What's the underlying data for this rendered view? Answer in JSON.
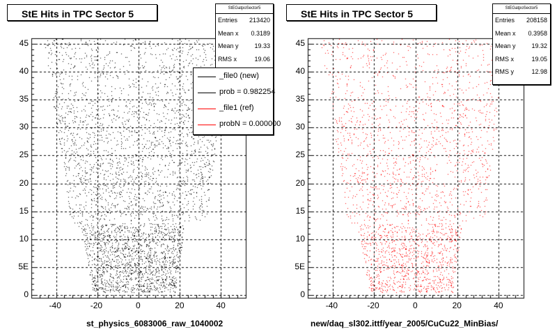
{
  "panels": [
    {
      "title": "StE Hits in TPC Sector 5",
      "xaxis_title": "st_physics_6083006_raw_1040002",
      "stats": {
        "name": "StEGatpoSector5",
        "rows": [
          {
            "label": "Entries",
            "value": "213420"
          },
          {
            "label": "Mean x",
            "value": "0.3189"
          },
          {
            "label": "Mean y",
            "value": "19.33"
          },
          {
            "label": "RMS x",
            "value": "19.06"
          }
        ]
      },
      "legend": [
        {
          "label": "_file0 (new)",
          "color": "#000000"
        },
        {
          "label": "prob = 0.982254",
          "color": "#000000"
        },
        {
          "label": "_file1 (ref)",
          "color": "#ff0000"
        },
        {
          "label": "probN = 0.000000",
          "color": "#ff0000"
        }
      ],
      "marker_color": "#000000"
    },
    {
      "title": "StE Hits in TPC Sector 5",
      "xaxis_title": "new/daq_sl302.ittf/year_2005/CuCu22_MinBias/",
      "stats": {
        "name": "StEGatpoSector5",
        "rows": [
          {
            "label": "Entries",
            "value": "208158"
          },
          {
            "label": "Mean x",
            "value": "0.3958"
          },
          {
            "label": "Mean y",
            "value": "19.32"
          },
          {
            "label": "RMS x",
            "value": "19.05"
          },
          {
            "label": "RMS y",
            "value": "12.98"
          }
        ]
      },
      "marker_color": "#ff0000"
    }
  ],
  "chart_data": [
    {
      "type": "scatter",
      "title": "StE Hits in TPC Sector 5",
      "xlabel": "st_physics_6083006_raw_1040002",
      "ylabel": "",
      "xlim": [
        -52,
        52
      ],
      "ylim": [
        -0.5,
        46
      ],
      "x_ticks": [
        -40,
        -20,
        0,
        20,
        40
      ],
      "y_ticks": [
        0,
        5,
        10,
        15,
        20,
        25,
        30,
        35,
        40,
        45
      ],
      "y_tick_labels": [
        "0",
        "5E",
        "10",
        "15",
        "20",
        "25",
        "30",
        "35",
        "40",
        "45"
      ],
      "grid": true,
      "series": [
        {
          "name": "_file0 (new)",
          "color": "#000000"
        }
      ],
      "stats": {
        "entries": 213420,
        "mean_x": 0.3189,
        "mean_y": 19.33,
        "rms_x": 19.06
      },
      "legend_entries": [
        "_file0 (new)",
        "prob = 0.982254",
        "_file1 (ref)",
        "probN = 0.000000"
      ],
      "row_extent": [
        {
          "y": 0.5,
          "xmin": -22,
          "xmax": 18
        },
        {
          "y": 12,
          "xmin": -28,
          "xmax": 22
        },
        {
          "y": 13.5,
          "xmin": -33,
          "xmax": 33
        },
        {
          "y": 46,
          "xmin": -46,
          "xmax": 44
        }
      ],
      "gaps": [
        {
          "y": [
            12.9,
            13.3
          ],
          "x": [
            -27,
            32
          ]
        }
      ]
    },
    {
      "type": "scatter",
      "title": "StE Hits in TPC Sector 5",
      "xlabel": "new/daq_sl302.ittf/year_2005/CuCu22_MinBias/",
      "ylabel": "",
      "xlim": [
        -52,
        52
      ],
      "ylim": [
        -0.5,
        46
      ],
      "x_ticks": [
        -40,
        -20,
        0,
        20,
        40
      ],
      "y_ticks": [
        0,
        5,
        10,
        15,
        20,
        25,
        30,
        35,
        40,
        45
      ],
      "y_tick_labels": [
        "0",
        "5E",
        "10",
        "15",
        "20",
        "25",
        "30",
        "35",
        "40",
        "45"
      ],
      "grid": true,
      "series": [
        {
          "name": "_file1 (ref)",
          "color": "#ff0000"
        }
      ],
      "stats": {
        "entries": 208158,
        "mean_x": 0.3958,
        "mean_y": 19.32,
        "rms_x": 19.05,
        "rms_y": 12.98
      },
      "row_extent": [
        {
          "y": 0.5,
          "xmin": -22,
          "xmax": 18
        },
        {
          "y": 12,
          "xmin": -28,
          "xmax": 22
        },
        {
          "y": 13.5,
          "xmin": -33,
          "xmax": 33
        },
        {
          "y": 46,
          "xmin": -46,
          "xmax": 44
        }
      ],
      "gaps": [
        {
          "y": [
            12.9,
            13.3
          ],
          "x": [
            -27,
            32
          ]
        }
      ]
    }
  ]
}
